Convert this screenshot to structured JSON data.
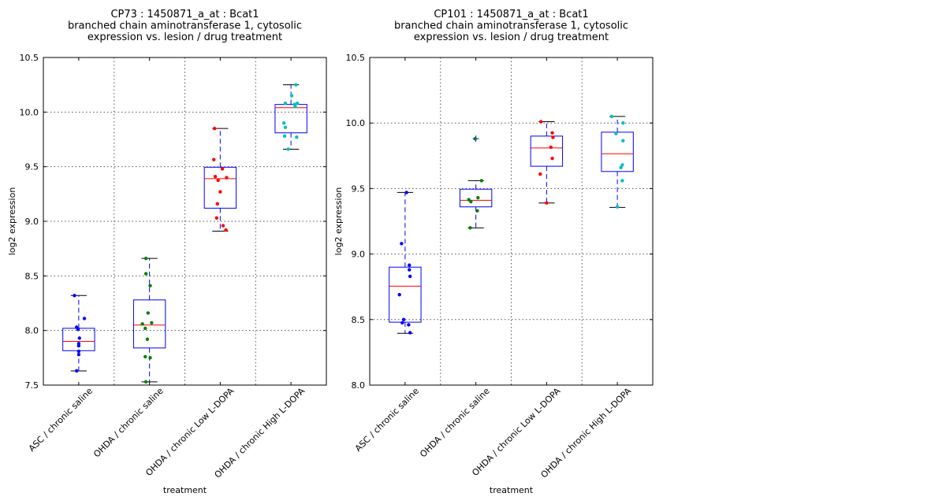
{
  "chart_data": [
    {
      "type": "box",
      "title": [
        "CP73 : 1450871_a_at : Bcat1",
        "branched chain aminotransferase 1, cytosolic",
        "expression vs. lesion / drug treatment"
      ],
      "xlabel": "treatment",
      "ylabel": "log2 expression",
      "ylim": [
        7.5,
        10.5
      ],
      "yticks": [
        "7.5",
        "8.0",
        "8.5",
        "9.0",
        "9.5",
        "10.0",
        "10.5"
      ],
      "grid": true,
      "categories": [
        "ASC / chronic saline",
        "OHDA / chronic saline",
        "OHDA / chronic Low L-DOPA",
        "OHDA / chronic High L-DOPA"
      ],
      "boxes": [
        {
          "whislo": 7.63,
          "q1": 7.815,
          "med": 7.9,
          "q3": 8.02,
          "whishi": 8.32,
          "fliers": [],
          "color": "#0000ff",
          "points": [
            8.32,
            8.11,
            8.03,
            8.01,
            7.93,
            7.88,
            7.86,
            7.81,
            7.78,
            7.63
          ],
          "jitter": [
            -0.06,
            0.08,
            -0.03,
            -0.01,
            0.01,
            0.0,
            0.0,
            0.0,
            0.0,
            -0.03
          ]
        },
        {
          "whislo": 7.53,
          "q1": 7.84,
          "med": 8.05,
          "q3": 8.28,
          "whishi": 8.66,
          "fliers": [],
          "color": "#008000",
          "points": [
            8.66,
            8.52,
            8.41,
            8.16,
            8.07,
            8.06,
            8.02,
            7.92,
            7.76,
            7.75,
            7.53
          ],
          "jitter": [
            -0.05,
            -0.05,
            0.01,
            -0.02,
            0.03,
            -0.1,
            -0.06,
            -0.03,
            -0.06,
            0.01,
            -0.05
          ]
        },
        {
          "whislo": 8.91,
          "q1": 9.12,
          "med": 9.39,
          "q3": 9.495,
          "whishi": 9.85,
          "fliers": [],
          "color": "#ff0000",
          "points": [
            9.85,
            9.565,
            9.48,
            9.41,
            9.4,
            9.375,
            9.27,
            9.16,
            9.03,
            8.96,
            8.92
          ],
          "jitter": [
            -0.08,
            -0.09,
            0.03,
            -0.07,
            0.09,
            -0.03,
            0.0,
            -0.04,
            -0.05,
            0.04,
            0.08
          ]
        },
        {
          "whislo": 9.66,
          "q1": 9.81,
          "med": 10.04,
          "q3": 10.07,
          "whishi": 10.25,
          "fliers": [],
          "color": "#00bfbf",
          "points": [
            10.25,
            10.15,
            10.08,
            10.07,
            10.08,
            10.05,
            9.9,
            9.86,
            9.78,
            9.77,
            9.66
          ],
          "jitter": [
            0.07,
            0.01,
            -0.08,
            0.05,
            0.09,
            0.06,
            -0.1,
            -0.08,
            -0.09,
            0.08,
            -0.04
          ]
        }
      ]
    },
    {
      "type": "box",
      "title": [
        "CP101 : 1450871_a_at : Bcat1",
        "branched chain aminotransferase 1, cytosolic",
        "expression vs. lesion / drug treatment"
      ],
      "xlabel": "treatment",
      "ylabel": "log2 expression",
      "ylim": [
        8.0,
        10.5
      ],
      "yticks": [
        "8.0",
        "8.5",
        "9.0",
        "9.5",
        "10.0",
        "10.5"
      ],
      "grid": true,
      "categories": [
        "ASC / chronic saline",
        "OHDA / chronic saline",
        "OHDA / chronic Low L-DOPA",
        "OHDA / chronic High L-DOPA"
      ],
      "boxes": [
        {
          "whislo": 8.395,
          "q1": 8.48,
          "med": 8.755,
          "q3": 8.9,
          "whishi": 9.47,
          "fliers": [],
          "color": "#0000ff",
          "points": [
            9.47,
            9.08,
            8.915,
            8.88,
            8.83,
            8.69,
            8.5,
            8.475,
            8.46,
            8.4
          ],
          "jitter": [
            0.02,
            -0.05,
            0.06,
            0.06,
            0.07,
            -0.08,
            -0.02,
            -0.04,
            0.05,
            0.07
          ]
        },
        {
          "whislo": 9.2,
          "q1": 9.36,
          "med": 9.41,
          "q3": 9.495,
          "whishi": 9.56,
          "fliers": [
            9.88
          ],
          "color": "#008000",
          "points": [
            9.88,
            9.56,
            9.43,
            9.415,
            9.4,
            9.33,
            9.2
          ],
          "jitter": [
            -0.01,
            0.08,
            0.03,
            -0.1,
            -0.07,
            0.02,
            -0.08
          ]
        },
        {
          "whislo": 9.39,
          "q1": 9.67,
          "med": 9.81,
          "q3": 9.9,
          "whishi": 10.01,
          "fliers": [],
          "color": "#ff0000",
          "points": [
            10.01,
            9.925,
            9.89,
            9.815,
            9.73,
            9.61,
            9.39
          ],
          "jitter": [
            -0.08,
            0.08,
            0.09,
            0.06,
            0.08,
            -0.09,
            0.0
          ]
        },
        {
          "whislo": 9.356,
          "q1": 9.63,
          "med": 9.765,
          "q3": 9.93,
          "whishi": 10.05,
          "fliers": [],
          "color": "#00bfbf",
          "points": [
            10.05,
            10.0,
            9.92,
            9.865,
            9.68,
            9.66,
            9.56,
            9.36
          ],
          "jitter": [
            -0.08,
            0.08,
            -0.02,
            0.08,
            0.07,
            0.05,
            0.07,
            0.0
          ]
        }
      ]
    }
  ]
}
